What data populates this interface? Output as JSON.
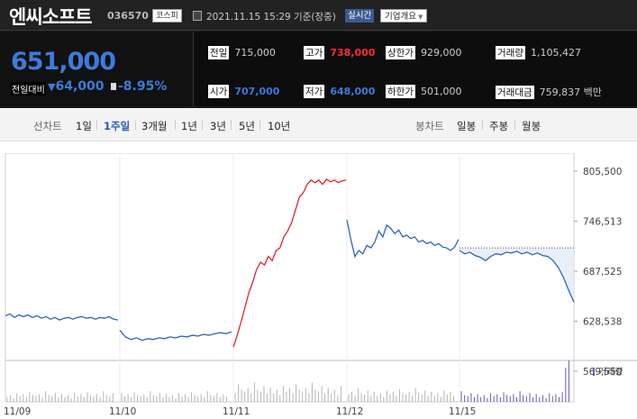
{
  "header": {
    "stock_name": "엔씨소프트",
    "stock_code": "036570",
    "market_badge": "코스피",
    "datetime": "2021.11.15 15:29 기준(장중)",
    "realtime_label": "실시간",
    "company_button": "기업개요"
  },
  "price": {
    "current": "651,000",
    "prev_label": "전일대비",
    "diff": "64,000",
    "pct": "-8.95%"
  },
  "stats": {
    "prev_close": {
      "label": "전일",
      "value": "715,000"
    },
    "high": {
      "label": "고가",
      "value": "738,000"
    },
    "upper_limit": {
      "label": "상한가",
      "value": "929,000"
    },
    "volume": {
      "label": "거래량",
      "value": "1,105,427"
    },
    "open": {
      "label": "시가",
      "value": "707,000"
    },
    "low": {
      "label": "저가",
      "value": "648,000"
    },
    "lower_limit": {
      "label": "하한가",
      "value": "501,000"
    },
    "trade_amount": {
      "label": "거래대금",
      "value": "759,837",
      "unit": "백만"
    }
  },
  "periods": {
    "line_label": "선차트",
    "items": [
      "1일",
      "1주일",
      "3개월",
      "1년",
      "3년",
      "5년",
      "10년"
    ],
    "active": "1주일",
    "candle_label": "봉차트",
    "candle_items": [
      "일봉",
      "주봉",
      "월봉"
    ]
  },
  "colors": {
    "up": "#e3232b",
    "down": "#2e63c8",
    "price_blue": "#3d7bdc"
  },
  "chart_data": {
    "type": "line",
    "x_labels": [
      "11/09",
      "11/10",
      "11/11",
      "11/12",
      "11/15"
    ],
    "y_ticks": [
      805500,
      746513,
      687525,
      628538,
      569550
    ],
    "y_tick_labels": [
      "805,500",
      "746,513",
      "687,525",
      "628,538",
      "569,550"
    ],
    "ylim": [
      569550,
      805500
    ],
    "prev_close_line": 715000,
    "volume_label": "거래량",
    "days": [
      {
        "date": "11/09",
        "color": "down",
        "values": [
          635000,
          637000,
          633000,
          636000,
          634000,
          636000,
          633000,
          635000,
          632000,
          634000,
          631000,
          633000,
          630000,
          632000,
          633000,
          631000,
          633000,
          634000,
          632000,
          633000,
          631000,
          633000,
          632000,
          634000,
          631000,
          630000
        ]
      },
      {
        "date": "11/10",
        "color": "down",
        "values": [
          618000,
          610000,
          607000,
          609000,
          606000,
          608000,
          607000,
          609000,
          608000,
          610000,
          609000,
          611000,
          610000,
          612000,
          611000,
          613000,
          612000,
          614000,
          615000,
          614000,
          616000
        ]
      },
      {
        "date": "11/11",
        "color": "up",
        "values": [
          598000,
          612000,
          628000,
          645000,
          662000,
          675000,
          690000,
          698000,
          695000,
          705000,
          700000,
          712000,
          715000,
          728000,
          735000,
          745000,
          760000,
          775000,
          780000,
          790000,
          795000,
          792000,
          795000,
          790000,
          796000,
          793000,
          795000,
          792000,
          794000,
          795000
        ]
      },
      {
        "date": "11/12",
        "color": "down",
        "values": [
          748000,
          725000,
          705000,
          712000,
          708000,
          718000,
          715000,
          722000,
          735000,
          728000,
          742000,
          738000,
          732000,
          736000,
          728000,
          730000,
          726000,
          728000,
          722000,
          724000,
          720000,
          722000,
          718000,
          720000,
          716000,
          715000,
          712000,
          716000,
          725000
        ]
      },
      {
        "date": "11/15",
        "color": "down",
        "values": [
          712000,
          708000,
          710000,
          706000,
          704000,
          700000,
          705000,
          708000,
          707000,
          710000,
          709000,
          711000,
          708000,
          710000,
          707000,
          709000,
          706000,
          705000,
          700000,
          692000,
          680000,
          665000,
          651000
        ]
      }
    ]
  }
}
